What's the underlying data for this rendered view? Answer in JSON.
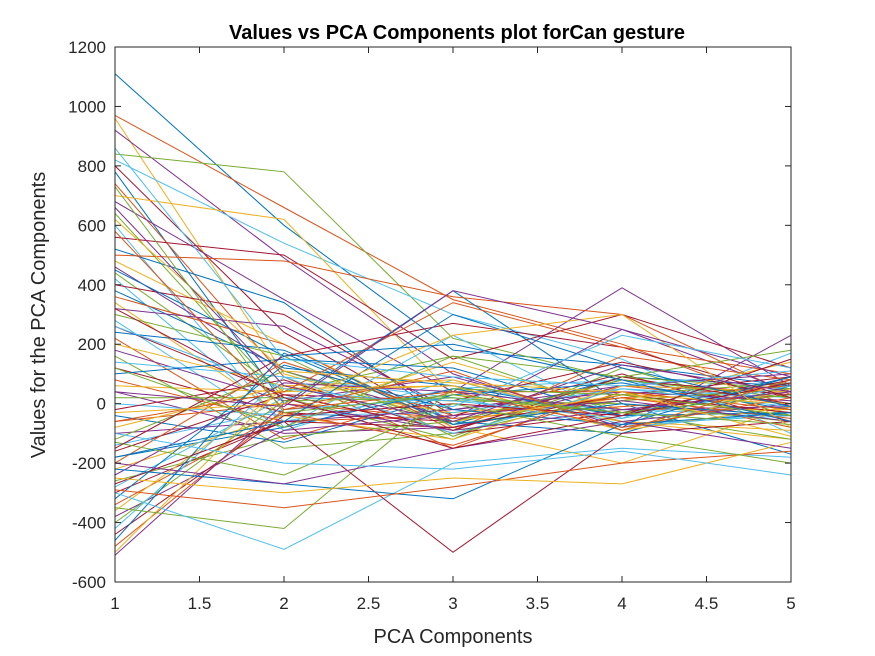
{
  "chart_data": {
    "type": "line",
    "title": "Values vs PCA Components plot forCan gesture",
    "xlabel": "PCA Components",
    "ylabel": "Values for the PCA Components",
    "xlim": [
      1,
      5
    ],
    "ylim": [
      -600,
      1200
    ],
    "x": [
      1,
      2,
      3,
      4,
      5
    ],
    "xticks": [
      "1",
      "1.5",
      "2",
      "2.5",
      "3",
      "3.5",
      "4",
      "4.5",
      "5"
    ],
    "yticks": [
      "-600",
      "-400",
      "-200",
      "0",
      "200",
      "400",
      "600",
      "800",
      "1000",
      "1200"
    ],
    "grid": false,
    "legend": "none",
    "colors": [
      "#0072bd",
      "#d95319",
      "#edb120",
      "#7e2f8e",
      "#77ac30",
      "#4dbeee",
      "#a2142f"
    ],
    "series": [
      {
        "values": [
          1110,
          600,
          180,
          130,
          60
        ]
      },
      {
        "values": [
          970,
          660,
          350,
          200,
          -10
        ]
      },
      {
        "values": [
          960,
          100,
          -60,
          20,
          -30
        ]
      },
      {
        "values": [
          920,
          490,
          100,
          -80,
          230
        ]
      },
      {
        "values": [
          840,
          780,
          220,
          80,
          20
        ]
      },
      {
        "values": [
          820,
          540,
          300,
          150,
          -100
        ]
      },
      {
        "values": [
          800,
          240,
          -80,
          30,
          90
        ]
      },
      {
        "values": [
          780,
          0,
          380,
          0,
          -170
        ]
      },
      {
        "values": [
          740,
          90,
          -150,
          60,
          0
        ]
      },
      {
        "values": [
          700,
          620,
          30,
          -60,
          -120
        ]
      },
      {
        "values": [
          680,
          350,
          40,
          390,
          60
        ]
      },
      {
        "values": [
          640,
          20,
          -120,
          120,
          -40
        ]
      },
      {
        "values": [
          600,
          -80,
          230,
          -50,
          170
        ]
      },
      {
        "values": [
          560,
          500,
          150,
          300,
          120
        ]
      },
      {
        "values": [
          520,
          340,
          -70,
          90,
          60
        ]
      },
      {
        "values": [
          500,
          480,
          360,
          300,
          30
        ]
      },
      {
        "values": [
          480,
          200,
          -80,
          -200,
          -10
        ]
      },
      {
        "values": [
          460,
          110,
          -50,
          250,
          40
        ]
      },
      {
        "values": [
          440,
          40,
          160,
          -30,
          -120
        ]
      },
      {
        "values": [
          420,
          -60,
          50,
          80,
          0
        ]
      },
      {
        "values": [
          400,
          300,
          -40,
          100,
          -60
        ]
      },
      {
        "values": [
          380,
          120,
          60,
          -40,
          90
        ]
      },
      {
        "values": [
          360,
          200,
          -90,
          160,
          80
        ]
      },
      {
        "values": [
          340,
          -40,
          140,
          -20,
          -20
        ]
      },
      {
        "values": [
          320,
          260,
          -20,
          60,
          100
        ]
      },
      {
        "values": [
          300,
          160,
          -110,
          90,
          50
        ]
      },
      {
        "values": [
          280,
          -90,
          80,
          -70,
          -40
        ]
      },
      {
        "values": [
          260,
          30,
          10,
          140,
          20
        ]
      },
      {
        "values": [
          240,
          180,
          -60,
          -100,
          60
        ]
      },
      {
        "values": [
          220,
          -120,
          40,
          40,
          -80
        ]
      },
      {
        "values": [
          200,
          60,
          -30,
          10,
          140
        ]
      },
      {
        "values": [
          180,
          10,
          90,
          -60,
          0
        ]
      },
      {
        "values": [
          160,
          -150,
          -100,
          30,
          70
        ]
      },
      {
        "values": [
          140,
          90,
          20,
          -20,
          -40
        ]
      },
      {
        "values": [
          120,
          -30,
          -60,
          80,
          30
        ]
      },
      {
        "values": [
          100,
          150,
          120,
          -40,
          -30
        ]
      },
      {
        "values": [
          80,
          -60,
          -40,
          20,
          60
        ]
      },
      {
        "values": [
          60,
          40,
          60,
          -90,
          -10
        ]
      },
      {
        "values": [
          40,
          -100,
          -80,
          60,
          40
        ]
      },
      {
        "values": [
          20,
          20,
          10,
          0,
          -60
        ]
      },
      {
        "values": [
          0,
          -40,
          -30,
          50,
          20
        ]
      },
      {
        "values": [
          -20,
          80,
          -100,
          -30,
          80
        ]
      },
      {
        "values": [
          -40,
          -130,
          30,
          70,
          -20
        ]
      },
      {
        "values": [
          -60,
          0,
          -50,
          -10,
          30
        ]
      },
      {
        "values": [
          -80,
          60,
          80,
          -60,
          -90
        ]
      },
      {
        "values": [
          -100,
          -60,
          -20,
          40,
          10
        ]
      },
      {
        "values": [
          -120,
          110,
          -70,
          10,
          50
        ]
      },
      {
        "values": [
          -140,
          -20,
          20,
          -80,
          -30
        ]
      },
      {
        "values": [
          -160,
          30,
          -90,
          90,
          0
        ]
      },
      {
        "values": [
          -180,
          -80,
          50,
          -40,
          70
        ]
      },
      {
        "values": [
          -200,
          140,
          -40,
          20,
          -50
        ]
      },
      {
        "values": [
          -220,
          -40,
          -120,
          60,
          40
        ]
      },
      {
        "values": [
          -240,
          70,
          40,
          -20,
          -10
        ]
      },
      {
        "values": [
          -260,
          -110,
          -60,
          80,
          20
        ]
      },
      {
        "values": [
          -280,
          20,
          10,
          -50,
          60
        ]
      },
      {
        "values": [
          -300,
          -60,
          -80,
          30,
          -30
        ]
      },
      {
        "values": [
          -320,
          130,
          -20,
          -70,
          90
        ]
      },
      {
        "values": [
          -340,
          -30,
          -140,
          40,
          -20
        ]
      },
      {
        "values": [
          -360,
          50,
          60,
          -90,
          50
        ]
      },
      {
        "values": [
          -380,
          -90,
          -40,
          10,
          -60
        ]
      },
      {
        "values": [
          -400,
          10,
          20,
          -30,
          30
        ]
      },
      {
        "values": [
          -420,
          90,
          -100,
          50,
          -10
        ]
      },
      {
        "values": [
          -440,
          -40,
          0,
          -40,
          70
        ]
      },
      {
        "values": [
          -460,
          170,
          -70,
          0,
          -40
        ]
      },
      {
        "values": [
          -480,
          -20,
          40,
          -80,
          20
        ]
      },
      {
        "values": [
          -500,
          60,
          -60,
          30,
          0
        ]
      },
      {
        "values": [
          -510,
          0,
          -90,
          -20,
          40
        ]
      },
      {
        "values": [
          -350,
          -420,
          50,
          30,
          -40
        ]
      },
      {
        "values": [
          -300,
          -490,
          -200,
          -150,
          -180
        ]
      },
      {
        "values": [
          -270,
          -60,
          -500,
          -100,
          -60
        ]
      },
      {
        "values": [
          -220,
          -270,
          -320,
          -70,
          -30
        ]
      },
      {
        "values": [
          -290,
          -350,
          -280,
          -200,
          -160
        ]
      },
      {
        "values": [
          -250,
          -300,
          -250,
          -270,
          -130
        ]
      },
      {
        "values": [
          -200,
          -270,
          -150,
          -60,
          -150
        ]
      },
      {
        "values": [
          -130,
          -240,
          0,
          -110,
          -200
        ]
      },
      {
        "values": [
          -100,
          -200,
          -220,
          -160,
          -240
        ]
      },
      {
        "values": [
          -150,
          160,
          270,
          190,
          20
        ]
      },
      {
        "values": [
          -180,
          -60,
          300,
          120,
          -10
        ]
      },
      {
        "values": [
          -60,
          40,
          340,
          190,
          100
        ]
      },
      {
        "values": [
          -30,
          0,
          230,
          300,
          -80
        ]
      },
      {
        "values": [
          40,
          -10,
          380,
          250,
          90
        ]
      },
      {
        "values": [
          120,
          -80,
          160,
          90,
          180
        ]
      },
      {
        "values": [
          260,
          50,
          -10,
          230,
          120
        ]
      },
      {
        "values": [
          320,
          20,
          -150,
          -40,
          150
        ]
      },
      {
        "values": [
          450,
          160,
          200,
          80,
          -60
        ]
      },
      {
        "values": [
          580,
          -20,
          110,
          -90,
          80
        ]
      },
      {
        "values": [
          620,
          110,
          70,
          40,
          -110
        ]
      },
      {
        "values": [
          660,
          60,
          -60,
          130,
          40
        ]
      },
      {
        "values": [
          730,
          -30,
          30,
          -30,
          -70
        ]
      },
      {
        "values": [
          860,
          150,
          90,
          60,
          110
        ]
      }
    ]
  }
}
